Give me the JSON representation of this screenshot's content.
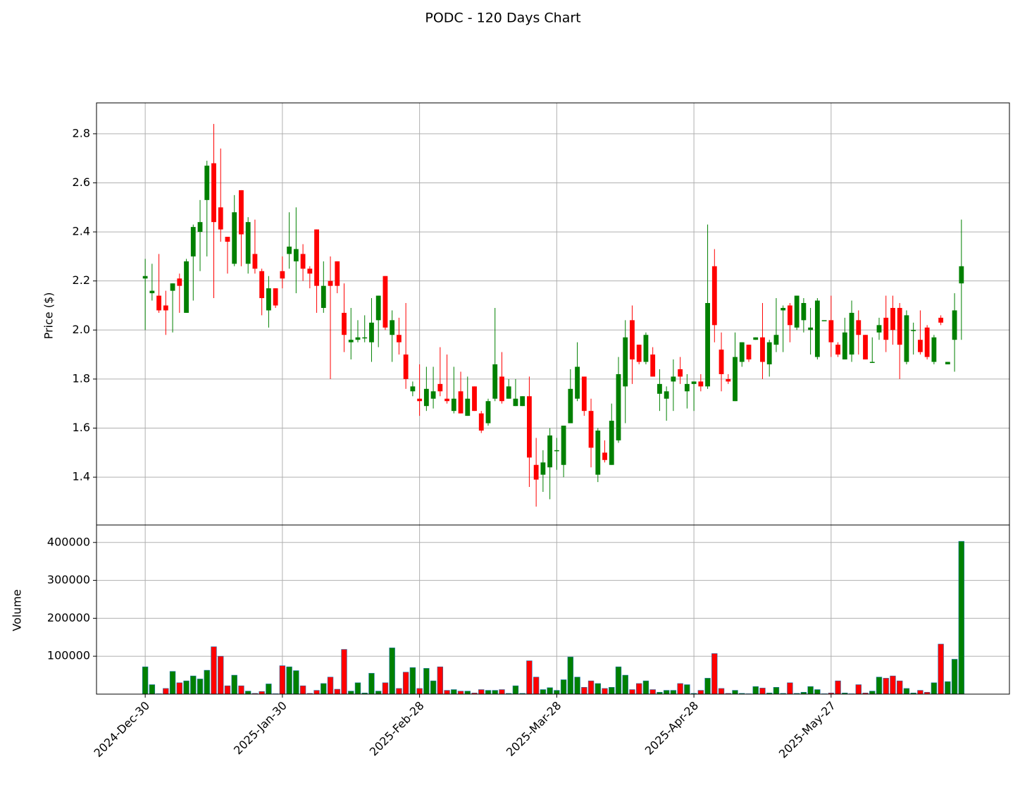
{
  "chart_data": {
    "type": "candlestick",
    "title": "PODC - 120 Days Chart",
    "ylabel": "Price ($)",
    "volume_label": "Volume",
    "up_color": "green",
    "down_color": "red",
    "grid": true,
    "open": [
      2.21,
      2.15,
      2.14,
      2.1,
      2.16,
      2.21,
      2.07,
      2.3,
      2.4,
      2.53,
      2.68,
      2.5,
      2.38,
      2.27,
      2.57,
      2.27,
      2.31,
      2.24,
      2.08,
      2.17,
      2.24,
      2.31,
      2.28,
      2.31,
      2.25,
      2.41,
      2.09,
      2.2,
      2.28,
      2.07,
      1.95,
      1.96,
      1.97,
      1.95,
      2.04,
      2.22,
      1.98,
      1.98,
      1.9,
      1.75,
      1.72,
      1.69,
      1.72,
      1.78,
      1.72,
      1.67,
      1.75,
      1.65,
      1.77,
      1.66,
      1.62,
      1.72,
      1.81,
      1.72,
      1.69,
      1.69,
      1.73,
      1.45,
      1.41,
      1.44,
      1.51,
      1.45,
      1.62,
      1.72,
      1.81,
      1.67,
      1.41,
      1.5,
      1.45,
      1.55,
      1.77,
      2.04,
      1.94,
      1.87,
      1.9,
      1.74,
      1.72,
      1.79,
      1.84,
      1.75,
      1.78,
      1.79,
      1.77,
      2.26,
      1.92,
      1.8,
      1.71,
      1.87,
      1.94,
      1.96,
      1.97,
      1.86,
      1.94,
      2.08,
      2.1,
      2.01,
      2.04,
      2.0,
      1.89,
      2.04,
      2.04,
      1.94,
      1.88,
      1.9,
      2.04,
      1.98,
      1.87,
      1.99,
      2.05,
      2.09,
      2.09,
      1.87,
      2.0,
      1.96,
      2.01,
      1.87,
      2.05,
      1.86,
      1.96,
      2.19
    ],
    "high": [
      2.29,
      2.27,
      2.31,
      2.16,
      2.19,
      2.23,
      2.29,
      2.43,
      2.53,
      2.69,
      2.84,
      2.74,
      2.38,
      2.55,
      2.57,
      2.46,
      2.45,
      2.25,
      2.22,
      2.17,
      2.3,
      2.48,
      2.5,
      2.35,
      2.26,
      2.41,
      2.28,
      2.3,
      2.28,
      2.19,
      2.09,
      2.04,
      2.06,
      2.13,
      2.14,
      2.22,
      2.08,
      2.05,
      2.11,
      1.79,
      1.86,
      1.85,
      1.85,
      1.93,
      1.9,
      1.85,
      1.83,
      1.81,
      1.77,
      1.67,
      1.72,
      2.09,
      1.91,
      1.8,
      1.8,
      1.73,
      1.81,
      1.56,
      1.51,
      1.6,
      1.56,
      1.61,
      1.84,
      1.95,
      1.81,
      1.72,
      1.6,
      1.55,
      1.7,
      1.89,
      2.04,
      2.1,
      1.94,
      1.99,
      1.93,
      1.84,
      1.77,
      1.88,
      1.89,
      1.82,
      1.79,
      1.82,
      2.43,
      2.33,
      1.99,
      1.82,
      1.99,
      1.95,
      1.94,
      1.97,
      2.11,
      1.96,
      2.13,
      2.1,
      2.11,
      2.14,
      2.13,
      2.09,
      2.13,
      2.04,
      2.14,
      1.95,
      2.05,
      2.12,
      2.08,
      1.98,
      1.97,
      2.05,
      2.14,
      2.14,
      2.11,
      2.08,
      2.03,
      2.08,
      2.02,
      1.98,
      2.06,
      1.87,
      2.15,
      2.45
    ],
    "low": [
      2.0,
      2.12,
      2.07,
      1.98,
      1.99,
      2.07,
      2.07,
      2.12,
      2.24,
      2.3,
      2.13,
      2.36,
      2.23,
      2.26,
      2.26,
      2.23,
      2.23,
      2.06,
      2.01,
      2.09,
      2.17,
      2.25,
      2.15,
      2.2,
      2.17,
      2.07,
      2.07,
      1.8,
      2.15,
      1.91,
      1.88,
      1.95,
      1.95,
      1.87,
      1.93,
      2.0,
      1.87,
      1.9,
      1.76,
      1.73,
      1.65,
      1.67,
      1.68,
      1.73,
      1.7,
      1.66,
      1.66,
      1.65,
      1.67,
      1.58,
      1.61,
      1.71,
      1.7,
      1.72,
      1.69,
      1.69,
      1.36,
      1.28,
      1.34,
      1.31,
      1.43,
      1.4,
      1.62,
      1.71,
      1.65,
      1.44,
      1.38,
      1.46,
      1.45,
      1.54,
      1.62,
      1.78,
      1.86,
      1.86,
      1.81,
      1.67,
      1.63,
      1.67,
      1.78,
      1.68,
      1.67,
      1.75,
      1.76,
      1.95,
      1.75,
      1.78,
      1.71,
      1.85,
      1.87,
      1.96,
      1.8,
      1.81,
      1.91,
      1.91,
      1.95,
      2.0,
      1.99,
      1.9,
      1.88,
      2.04,
      1.89,
      1.89,
      1.88,
      1.87,
      1.9,
      1.88,
      1.87,
      1.96,
      1.91,
      1.94,
      1.8,
      1.86,
      1.9,
      1.9,
      1.88,
      1.86,
      2.02,
      1.86,
      1.83,
      1.96
    ],
    "close": [
      2.22,
      2.16,
      2.08,
      2.08,
      2.19,
      2.18,
      2.28,
      2.42,
      2.44,
      2.67,
      2.44,
      2.41,
      2.36,
      2.48,
      2.39,
      2.44,
      2.25,
      2.13,
      2.17,
      2.1,
      2.21,
      2.34,
      2.33,
      2.25,
      2.23,
      2.18,
      2.18,
      2.18,
      2.18,
      1.98,
      1.96,
      1.97,
      1.97,
      2.03,
      2.14,
      2.01,
      2.04,
      1.95,
      1.8,
      1.77,
      1.71,
      1.76,
      1.75,
      1.75,
      1.71,
      1.72,
      1.66,
      1.72,
      1.67,
      1.59,
      1.71,
      1.86,
      1.71,
      1.77,
      1.72,
      1.73,
      1.48,
      1.39,
      1.46,
      1.57,
      1.51,
      1.61,
      1.76,
      1.85,
      1.67,
      1.52,
      1.59,
      1.47,
      1.63,
      1.82,
      1.97,
      1.88,
      1.87,
      1.98,
      1.81,
      1.78,
      1.75,
      1.81,
      1.81,
      1.78,
      1.79,
      1.77,
      2.11,
      2.02,
      1.82,
      1.79,
      1.89,
      1.95,
      1.88,
      1.97,
      1.87,
      1.95,
      1.98,
      2.09,
      2.02,
      2.14,
      2.11,
      2.01,
      2.12,
      2.04,
      1.95,
      1.9,
      1.99,
      2.07,
      1.98,
      1.88,
      1.87,
      2.02,
      1.96,
      2.0,
      1.94,
      2.06,
      2.0,
      1.91,
      1.89,
      1.97,
      2.03,
      1.87,
      2.08,
      2.26
    ],
    "volume": [
      72000,
      25000,
      1000,
      15000,
      60000,
      30000,
      35000,
      48000,
      40000,
      63000,
      125000,
      100000,
      22000,
      50000,
      22000,
      8000,
      2000,
      7000,
      27000,
      1000,
      75000,
      72000,
      62000,
      22000,
      2000,
      10000,
      28000,
      45000,
      13000,
      118000,
      8000,
      30000,
      3000,
      55000,
      8000,
      30000,
      122000,
      15000,
      58000,
      70000,
      15000,
      68000,
      35000,
      72000,
      10000,
      12000,
      8000,
      8000,
      3000,
      12000,
      10000,
      10000,
      12000,
      2000,
      22000,
      2000,
      88000,
      45000,
      12000,
      17000,
      10000,
      38000,
      98000,
      45000,
      18000,
      35000,
      28000,
      15000,
      18000,
      72000,
      50000,
      12000,
      28000,
      35000,
      12000,
      5000,
      10000,
      10000,
      28000,
      25000,
      2000,
      10000,
      42000,
      107000,
      15000,
      2000,
      10000,
      2000,
      1000,
      20000,
      16000,
      3000,
      18000,
      2000,
      30000,
      2000,
      5000,
      20000,
      12000,
      1000,
      3000,
      35000,
      3000,
      1000,
      25000,
      3000,
      8000,
      45000,
      42000,
      48000,
      35000,
      15000,
      3000,
      10000,
      5000,
      30000,
      132000,
      33000,
      92000,
      403000
    ],
    "xlim": [
      -7.1,
      126
    ],
    "xticks": [
      {
        "value": 0,
        "label": "2024-Dec-30"
      },
      {
        "value": 20,
        "label": "2025-Jan-30"
      },
      {
        "value": 40,
        "label": "2025-Feb-28"
      },
      {
        "value": 60,
        "label": "2025-Mar-28"
      },
      {
        "value": 80,
        "label": "2025-Apr-28"
      },
      {
        "value": 100,
        "label": "2025-May-27"
      }
    ],
    "ylim": [
      1.205,
      2.926
    ],
    "yticks": [
      {
        "value": 1.4,
        "label": "1.4"
      },
      {
        "value": 1.6,
        "label": "1.6"
      },
      {
        "value": 1.8,
        "label": "1.8"
      },
      {
        "value": 2.0,
        "label": "2.0"
      },
      {
        "value": 2.2,
        "label": "2.2"
      },
      {
        "value": 2.4,
        "label": "2.4"
      },
      {
        "value": 2.6,
        "label": "2.6"
      },
      {
        "value": 2.8,
        "label": "2.8"
      }
    ],
    "volume_ylim": [
      0,
      446000
    ],
    "volume_yticks": [
      100000,
      200000,
      300000,
      400000
    ]
  }
}
